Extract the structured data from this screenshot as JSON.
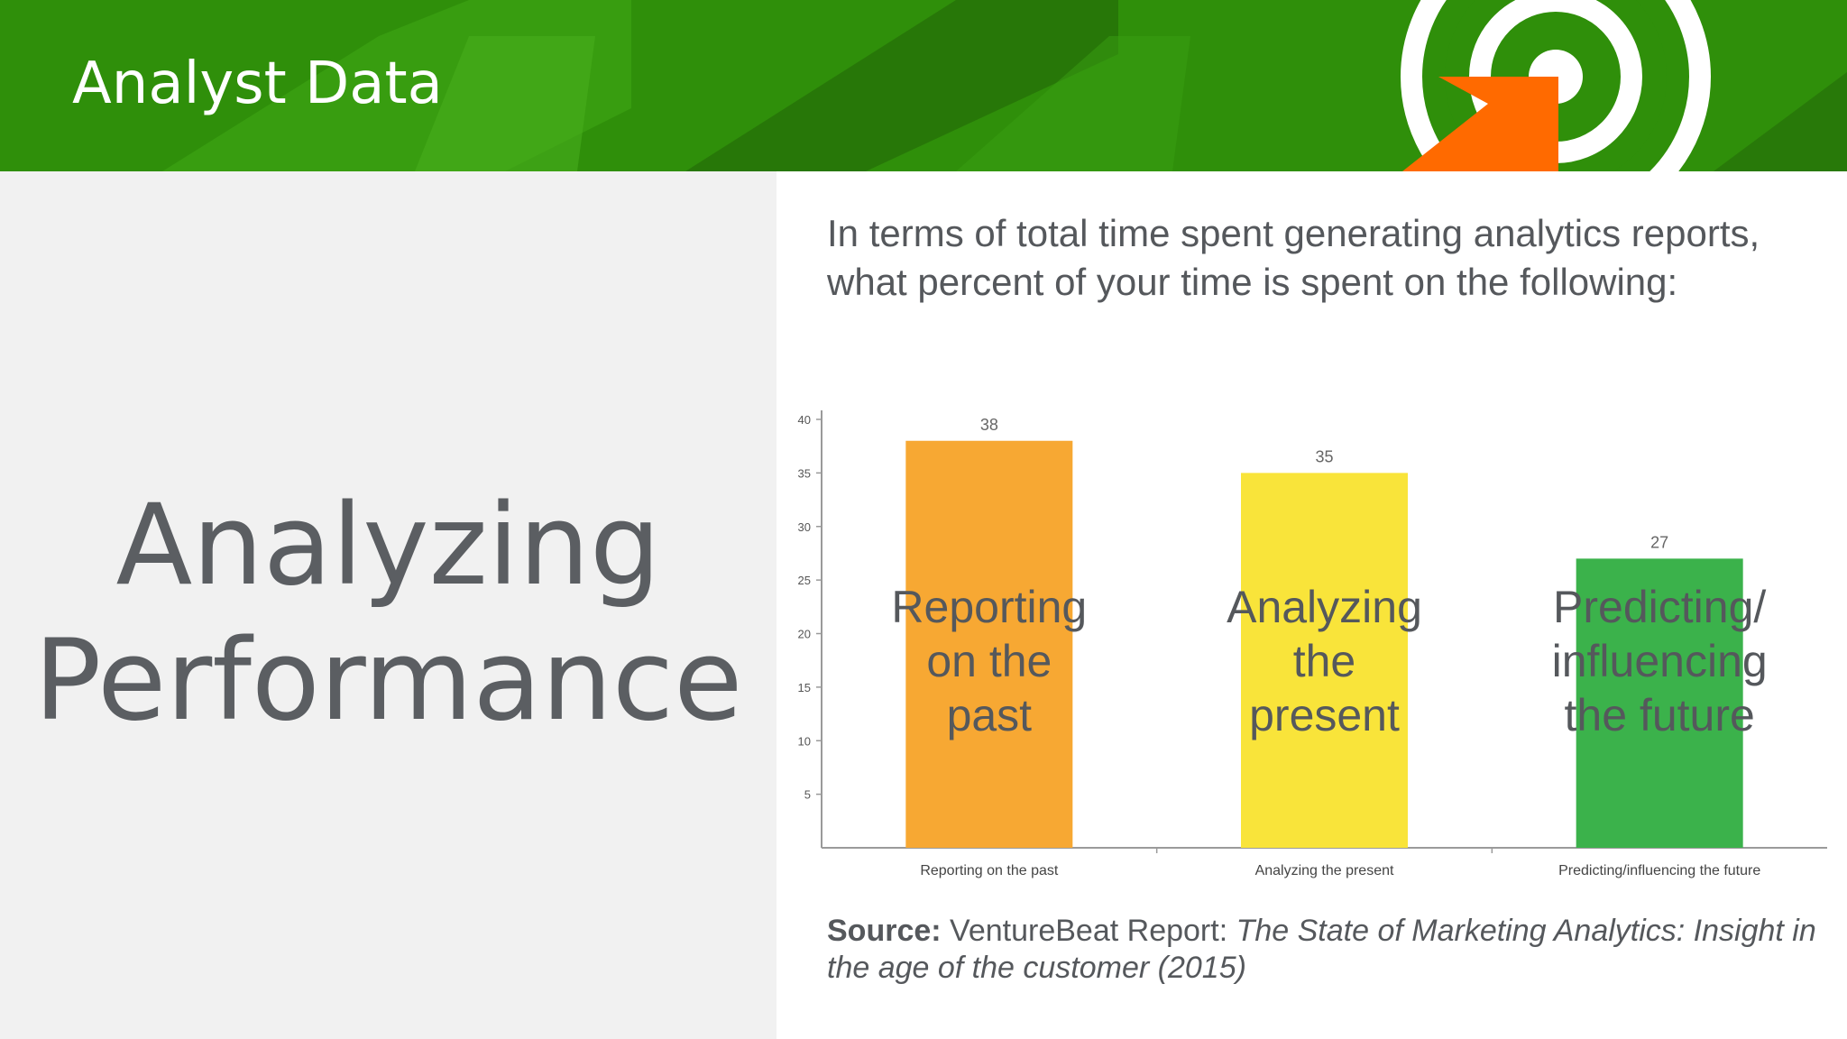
{
  "header": {
    "title": "Analyst Data"
  },
  "left": {
    "title_line1": "Analyzing",
    "title_line2": "Performance"
  },
  "question": "In terms of total time spent generating analytics reports, what percent of your time is spent on the following:",
  "source": {
    "label": "Source:",
    "publisher": "VentureBeat Report:",
    "title": "The State of Marketing Analytics: Insight in the age of the customer (2015)"
  },
  "colors": {
    "header_green": "#2f8f0a",
    "target_ring": "#ffffff",
    "arrow_orange": "#ff6a00",
    "bar_orange": "#f7a833",
    "bar_yellow": "#f9e43a",
    "bar_green": "#3bb24b"
  },
  "chart_data": {
    "type": "bar",
    "categories": [
      "Reporting on the past",
      "Analyzing the present",
      "Predicting/influencing the future"
    ],
    "values": [
      38,
      35,
      27
    ],
    "overlay_labels": [
      [
        "Reporting",
        "on the",
        "past"
      ],
      [
        "Analyzing",
        "the",
        "present"
      ],
      [
        "Predicting/",
        "influencing",
        "the future"
      ]
    ],
    "colors": [
      "#f7a833",
      "#f9e43a",
      "#3bb24b"
    ],
    "yticks": [
      5,
      10,
      15,
      20,
      25,
      30,
      35,
      40
    ],
    "ylim": [
      0,
      40
    ],
    "title": "",
    "xlabel": "",
    "ylabel": "",
    "grid": false,
    "legend": "none"
  }
}
